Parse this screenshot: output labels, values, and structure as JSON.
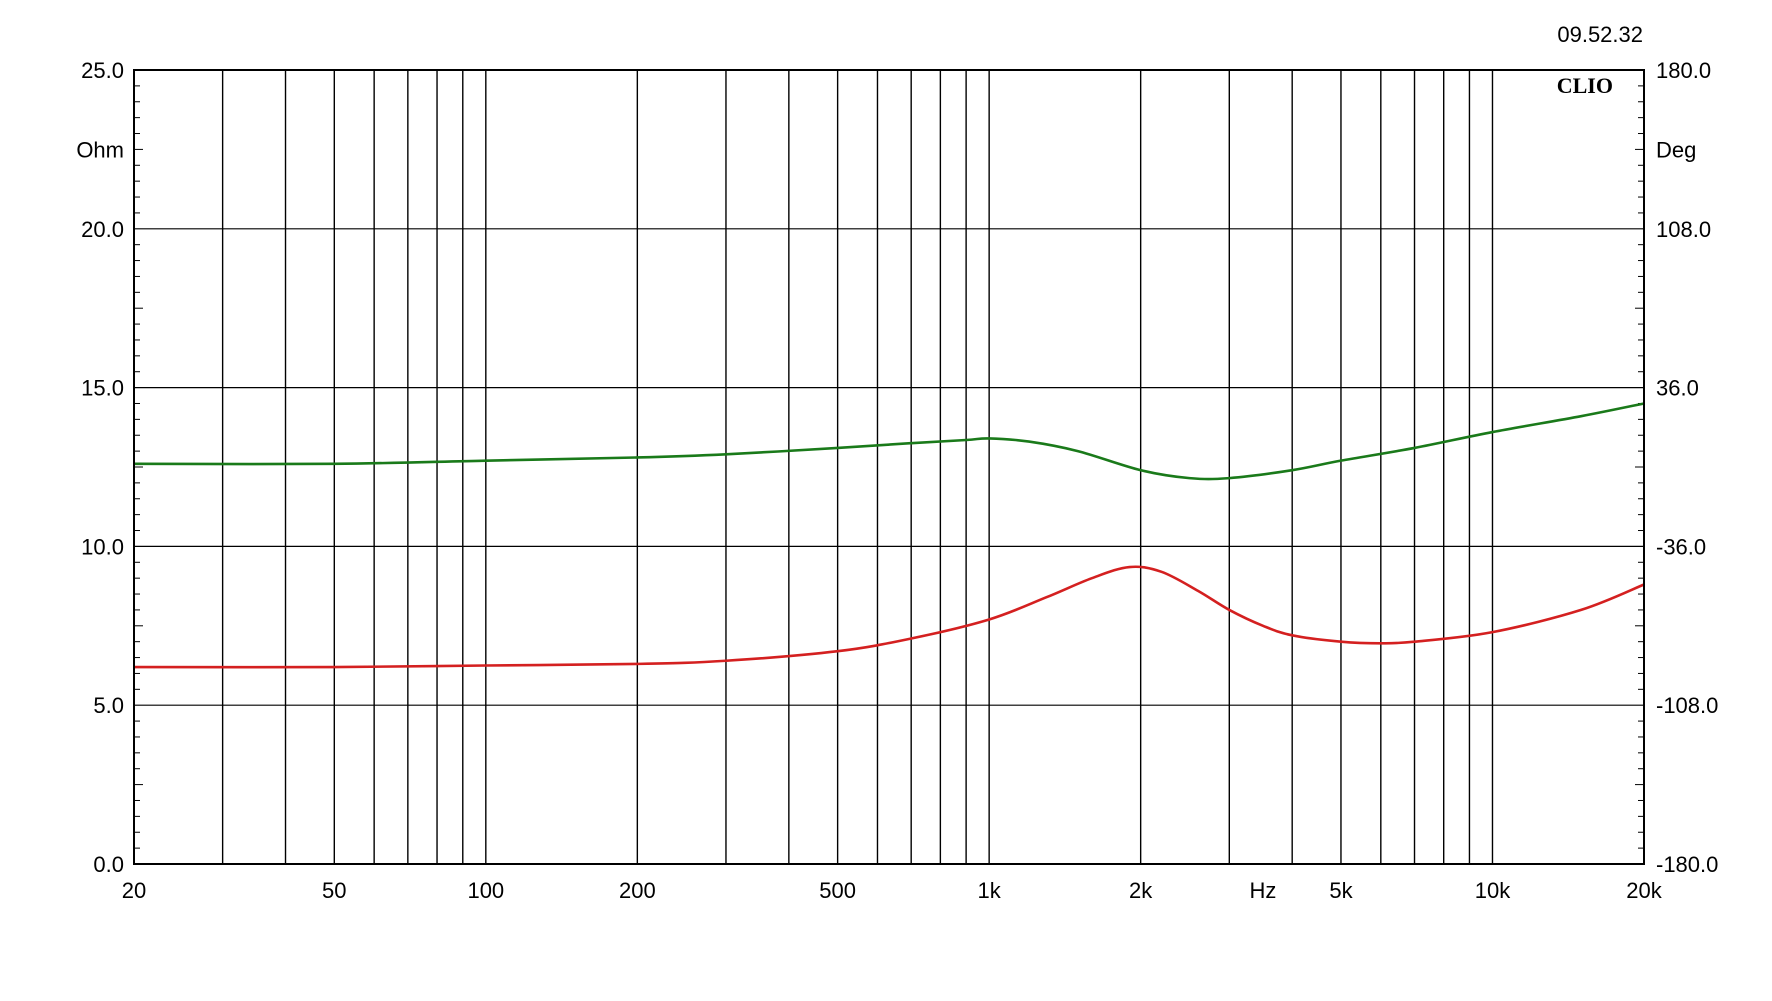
{
  "timestamp": "09.52.32",
  "brand": "CLIO",
  "chart_data": {
    "type": "line",
    "x_scale": "log",
    "xlim": [
      20,
      20000
    ],
    "x_ticks": [
      {
        "value": 20,
        "label": "20"
      },
      {
        "value": 50,
        "label": "50"
      },
      {
        "value": 100,
        "label": "100"
      },
      {
        "value": 200,
        "label": "200"
      },
      {
        "value": 500,
        "label": "500"
      },
      {
        "value": 1000,
        "label": "1k"
      },
      {
        "value": 2000,
        "label": "2k"
      },
      {
        "value": 5000,
        "label": "5k"
      },
      {
        "value": 10000,
        "label": "10k"
      },
      {
        "value": 20000,
        "label": "20k"
      }
    ],
    "x_unit": "Hz",
    "x_grid": [
      20,
      30,
      40,
      50,
      60,
      70,
      80,
      90,
      100,
      200,
      300,
      400,
      500,
      600,
      700,
      800,
      900,
      1000,
      2000,
      3000,
      4000,
      5000,
      6000,
      7000,
      8000,
      9000,
      10000,
      20000
    ],
    "y_left": {
      "unit": "Ohm",
      "ylim": [
        0,
        25
      ],
      "ticks": [
        "0.0",
        "5.0",
        "10.0",
        "15.0",
        "20.0",
        "25.0"
      ]
    },
    "y_right": {
      "unit": "Deg",
      "ylim": [
        -180,
        180
      ],
      "ticks": [
        "-180.0",
        "-108.0",
        "-36.0",
        "36.0",
        "108.0",
        "180.0"
      ]
    },
    "grid": true,
    "series": [
      {
        "axis": "left",
        "color": "#1a7a1a",
        "x": [
          20,
          50,
          100,
          200,
          300,
          500,
          700,
          900,
          1000,
          1200,
          1500,
          2000,
          2500,
          3000,
          4000,
          5000,
          7000,
          10000,
          15000,
          20000
        ],
        "values": [
          12.6,
          12.6,
          12.7,
          12.8,
          12.9,
          13.1,
          13.25,
          13.35,
          13.4,
          13.3,
          13.0,
          12.4,
          12.15,
          12.15,
          12.4,
          12.7,
          13.1,
          13.6,
          14.1,
          14.5
        ]
      },
      {
        "axis": "left",
        "color": "#d42020",
        "x": [
          20,
          50,
          100,
          200,
          300,
          500,
          700,
          1000,
          1300,
          1600,
          1900,
          2200,
          2600,
          3000,
          3500,
          4000,
          5000,
          6000,
          7000,
          10000,
          15000,
          20000
        ],
        "values": [
          6.2,
          6.2,
          6.25,
          6.3,
          6.4,
          6.7,
          7.1,
          7.7,
          8.4,
          9.0,
          9.35,
          9.2,
          8.6,
          8.0,
          7.5,
          7.2,
          7.0,
          6.95,
          7.0,
          7.3,
          8.0,
          8.8
        ]
      }
    ]
  }
}
